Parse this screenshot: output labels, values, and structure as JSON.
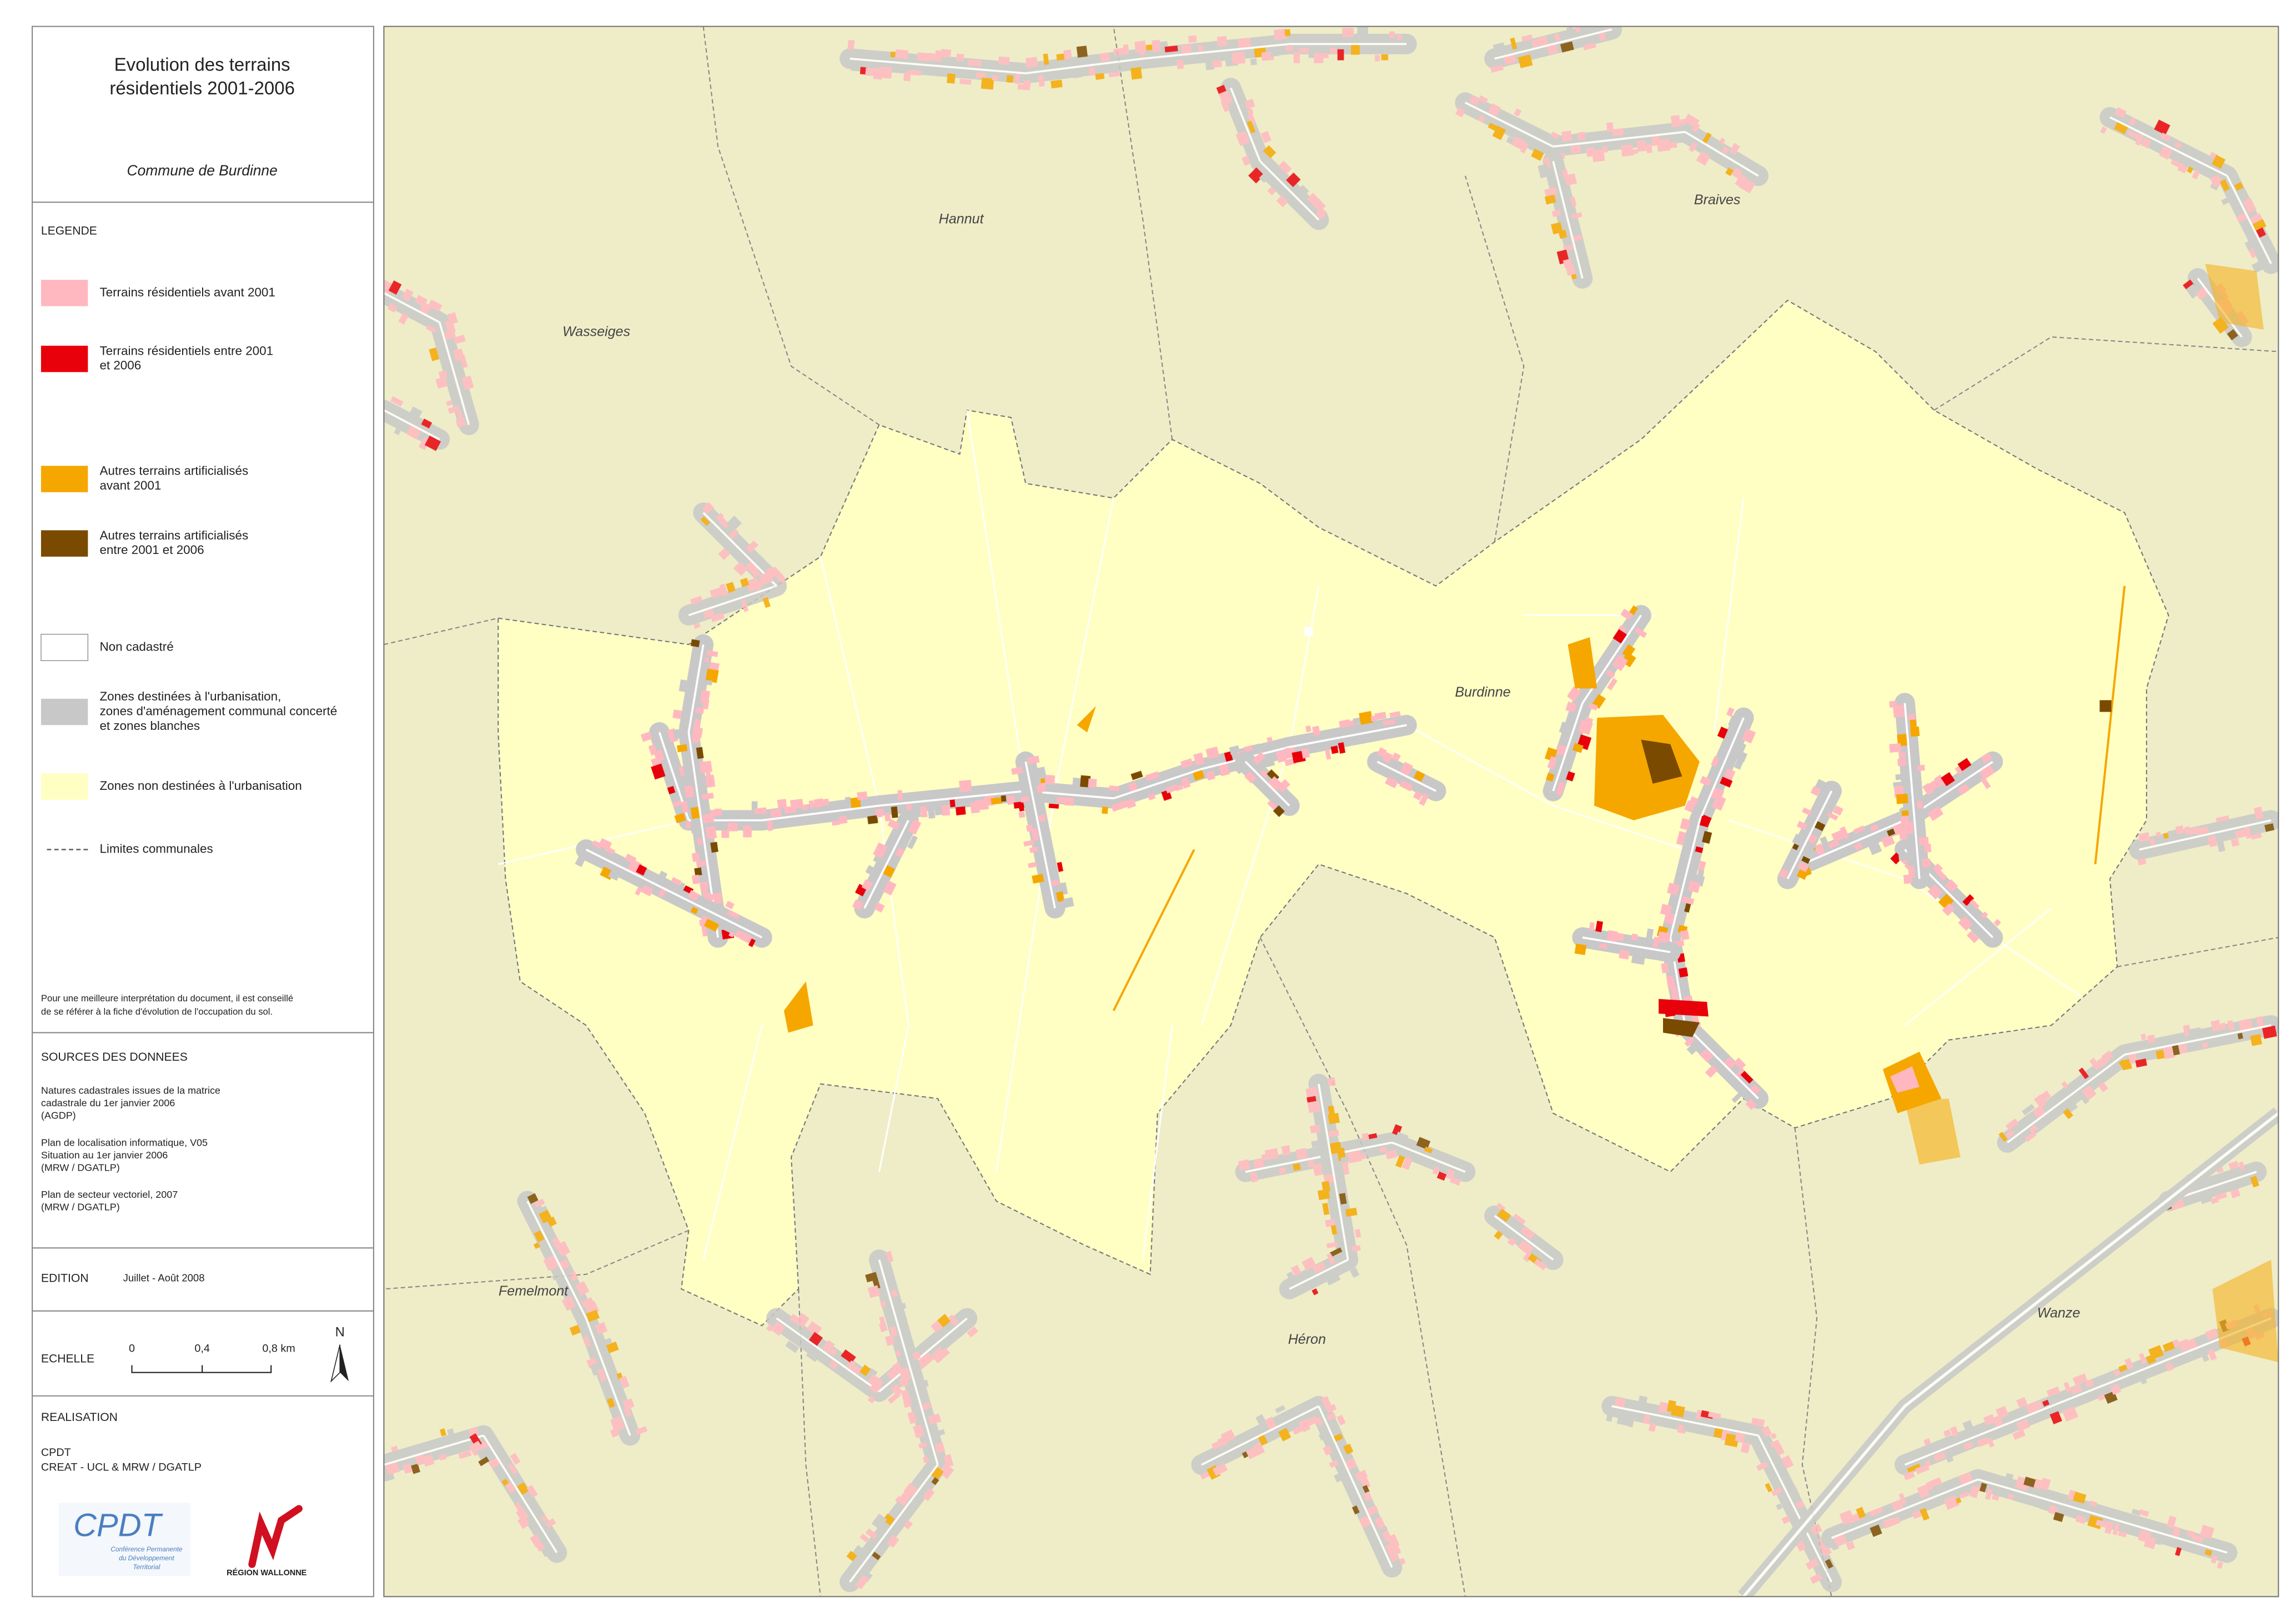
{
  "header": {
    "title": [
      "Evolution des terrains",
      "résidentiels 2001-2006"
    ],
    "subtitle": "Commune de Burdinne"
  },
  "legend": {
    "title": "LEGENDE",
    "items": [
      {
        "label": [
          "Terrains résidentiels avant 2001"
        ],
        "color": "#ffb8c0"
      },
      {
        "label": [
          "Terrains résidentiels entre 2001",
          "et 2006"
        ],
        "color": "#e8000b"
      },
      {
        "label": [
          "Autres terrains artificialisés",
          "avant 2001"
        ],
        "color": "#f5a700"
      },
      {
        "label": [
          "Autres terrains artificialisés",
          "entre 2001 et 2006"
        ],
        "color": "#7a4a00"
      },
      {
        "label": [
          "Non cadastré"
        ],
        "color": "#ffffff"
      },
      {
        "label": [
          "Zones destinées à l'urbanisation,",
          "zones d'aménagement communal concerté",
          "et zones blanches"
        ],
        "color": "#c8c8c8"
      },
      {
        "label": [
          "Zones non destinées à l'urbanisation"
        ],
        "color": "#ffffc4"
      },
      {
        "label": [
          "Limites communales"
        ],
        "style": "dashed"
      }
    ],
    "note": [
      "Pour une meilleure interprétation du document, il est conseillé",
      "de se référer à la fiche d'évolution de l'occupation du sol."
    ]
  },
  "sources": {
    "title": "SOURCES DES DONNEES",
    "entries": [
      [
        "Natures cadastrales issues de la matrice",
        "cadastrale du 1er janvier 2006",
        "(AGDP)"
      ],
      [
        "Plan de localisation informatique, V05",
        "Situation au 1er janvier 2006",
        "(MRW / DGATLP)"
      ],
      [
        "Plan de secteur vectoriel, 2007",
        "(MRW / DGATLP)"
      ]
    ]
  },
  "edition": {
    "title": "EDITION",
    "date": "Juillet - Août 2008"
  },
  "scale": {
    "title": "ECHELLE",
    "labels": [
      "0",
      "0,4",
      "0,8 km"
    ],
    "north": "N"
  },
  "realisation": {
    "title": "REALISATION",
    "lines": [
      "CPDT",
      "CREAT - UCL & MRW / DGATLP"
    ],
    "logos": {
      "cpdt": "CPDT",
      "cpdt_caption": [
        "Conférence Permanente",
        "du Développement",
        "Territorial"
      ],
      "region": "RÉGION WALLONNE"
    }
  },
  "map": {
    "places": [
      "Hannut",
      "Wasseiges",
      "Braives",
      "Burdinne",
      "Femelmont",
      "Héron",
      "Wanze"
    ]
  }
}
